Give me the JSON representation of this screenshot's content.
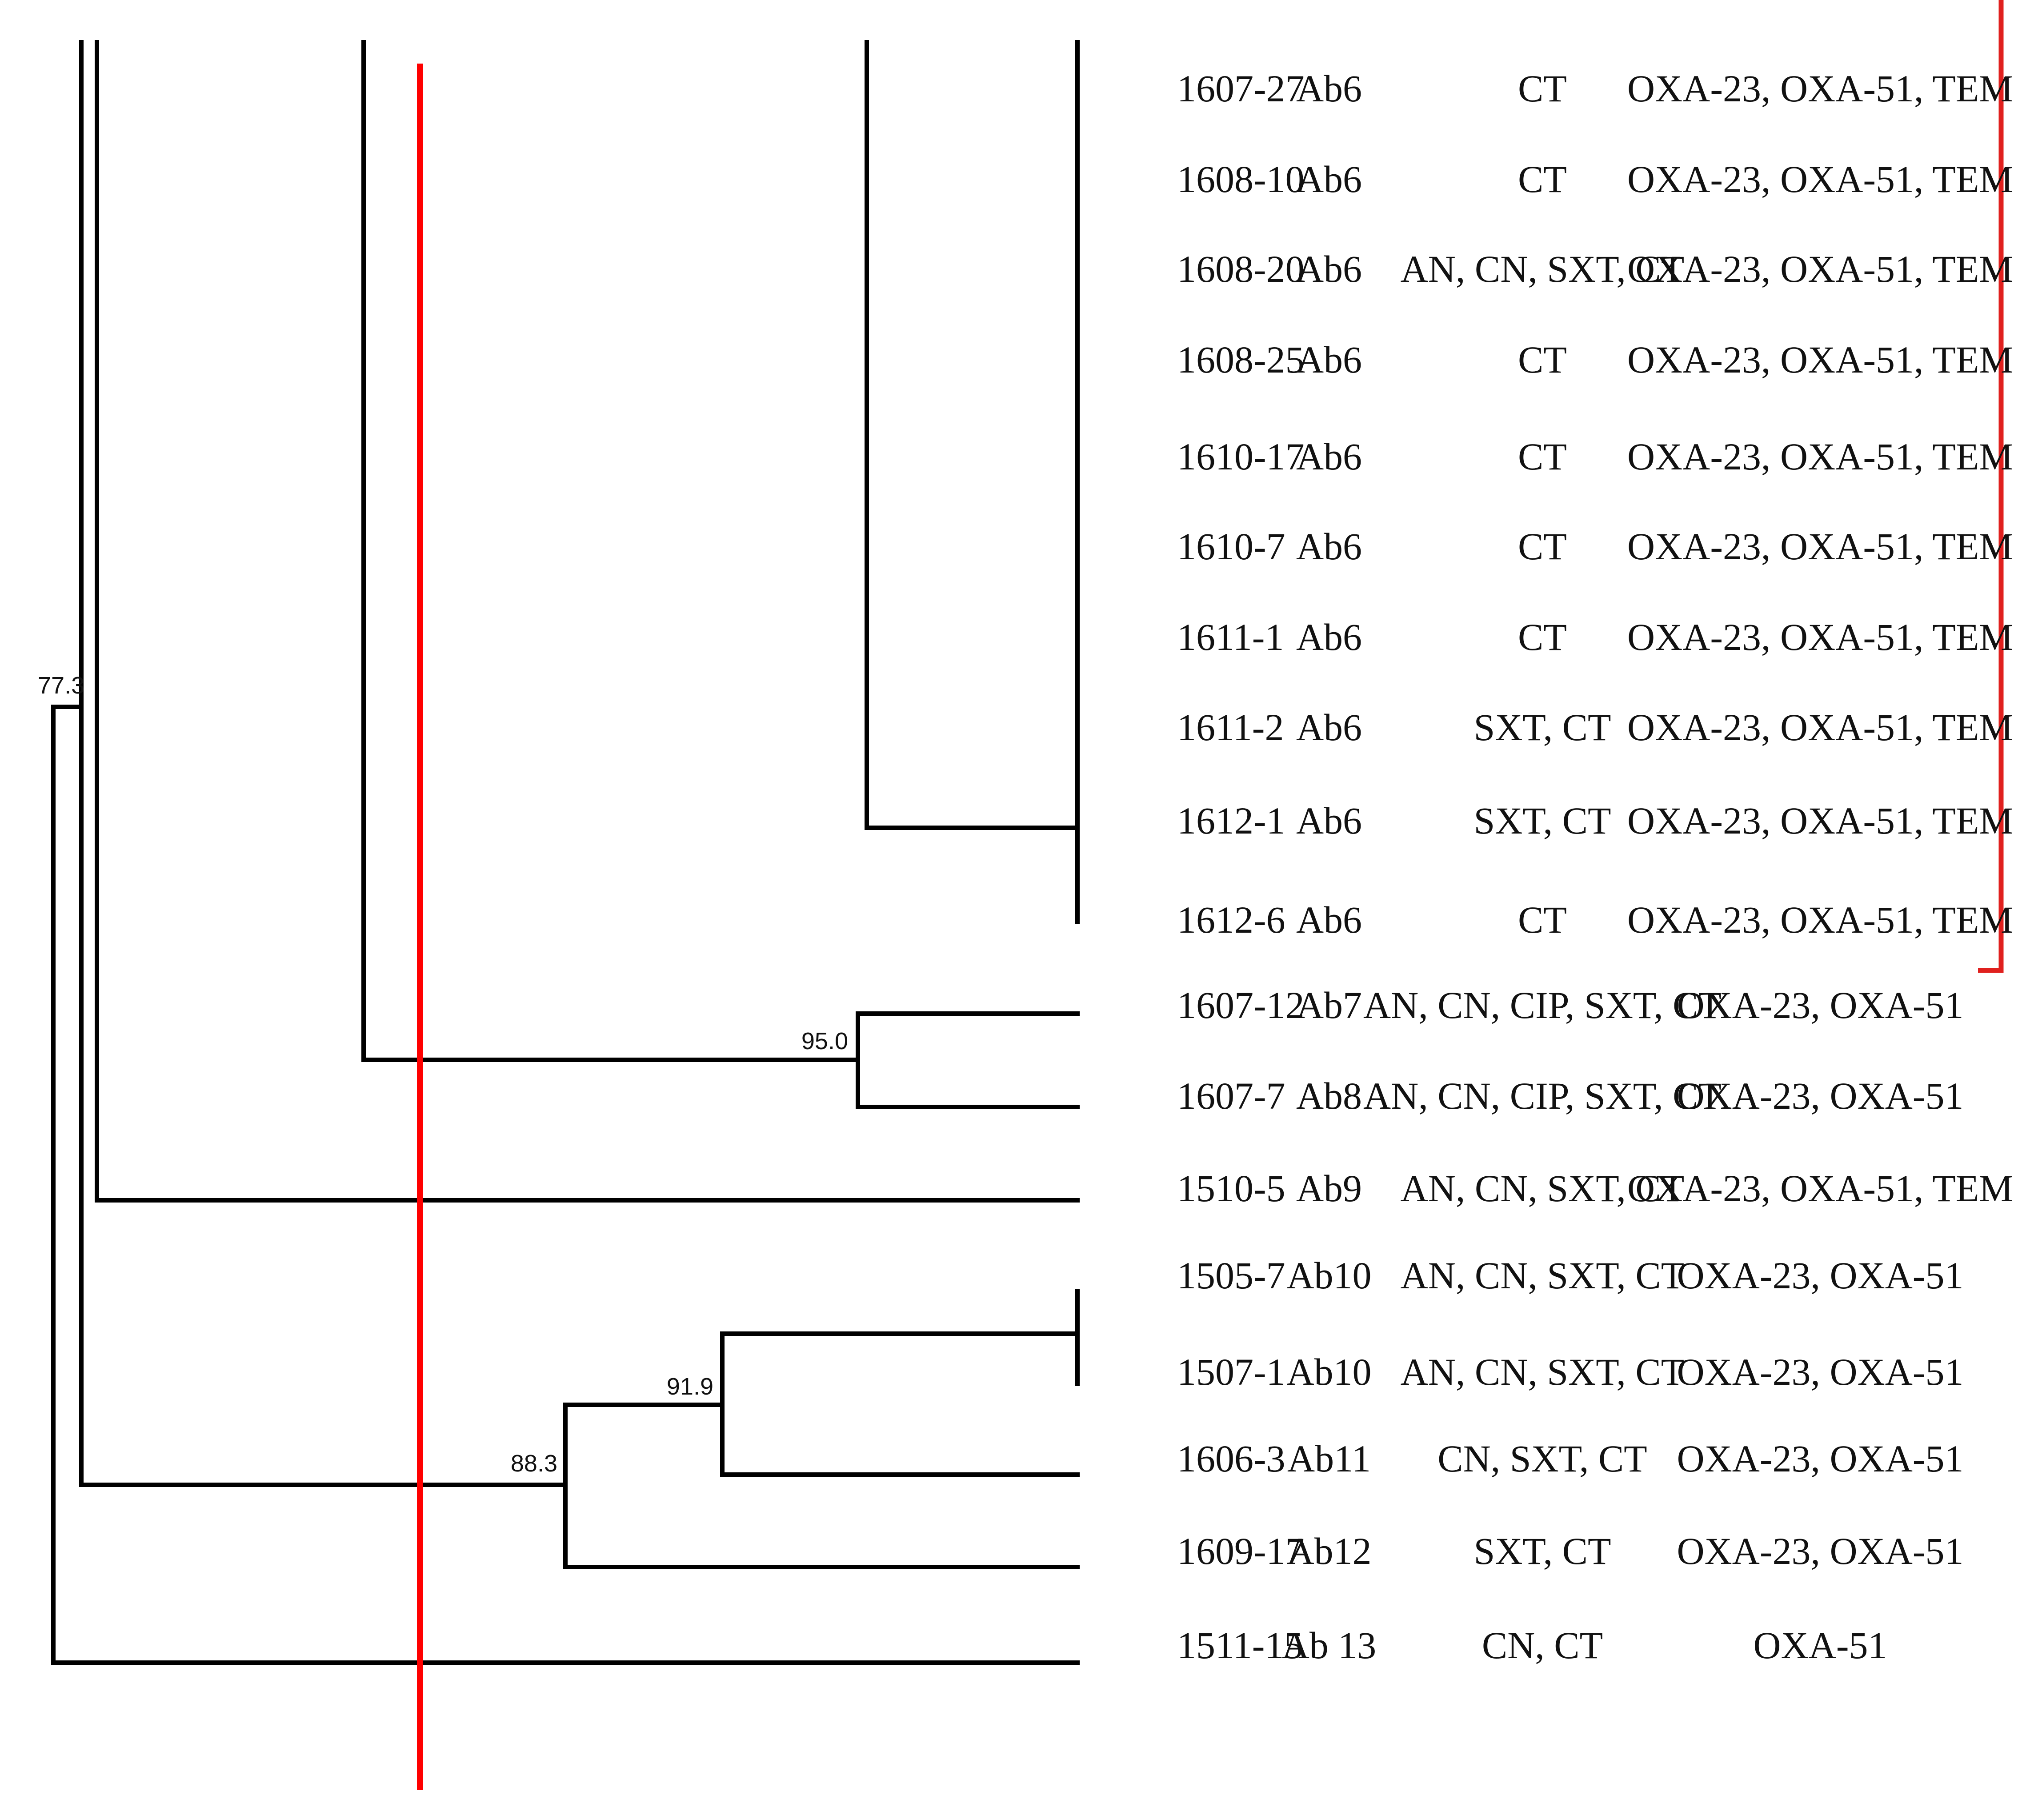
{
  "diagram": {
    "type": "dendrogram",
    "node_labels": [
      {
        "id": "n773",
        "value": "77.3"
      },
      {
        "id": "n950",
        "value": "95.0"
      },
      {
        "id": "n919",
        "value": "91.9"
      },
      {
        "id": "n883",
        "value": "88.3"
      }
    ],
    "rows": [
      {
        "id": "1607-27",
        "pattern": "Ab6",
        "resistance": "CT",
        "genes": "OXA-23, OXA-51, TEM"
      },
      {
        "id": "1608-10",
        "pattern": "Ab6",
        "resistance": "CT",
        "genes": "OXA-23, OXA-51, TEM"
      },
      {
        "id": "1608-20",
        "pattern": "Ab6",
        "resistance": "AN, CN, SXT, CT",
        "genes": "OXA-23, OXA-51, TEM"
      },
      {
        "id": "1608-25",
        "pattern": "Ab6",
        "resistance": "CT",
        "genes": "OXA-23, OXA-51, TEM"
      },
      {
        "id": "1610-17",
        "pattern": "Ab6",
        "resistance": "CT",
        "genes": "OXA-23, OXA-51, TEM"
      },
      {
        "id": "1610-7",
        "pattern": "Ab6",
        "resistance": "CT",
        "genes": "OXA-23, OXA-51, TEM"
      },
      {
        "id": "1611-1",
        "pattern": "Ab6",
        "resistance": "CT",
        "genes": "OXA-23, OXA-51, TEM"
      },
      {
        "id": "1611-2",
        "pattern": "Ab6",
        "resistance": "SXT, CT",
        "genes": "OXA-23, OXA-51, TEM"
      },
      {
        "id": "1612-1",
        "pattern": "Ab6",
        "resistance": "SXT, CT",
        "genes": "OXA-23, OXA-51, TEM"
      },
      {
        "id": "1612-6",
        "pattern": "Ab6",
        "resistance": "CT",
        "genes": "OXA-23, OXA-51, TEM"
      },
      {
        "id": "1607-12",
        "pattern": "Ab7",
        "resistance": "AN, CN, CIP, SXT, CT",
        "genes": "OXA-23, OXA-51"
      },
      {
        "id": "1607-7",
        "pattern": "Ab8",
        "resistance": "AN, CN, CIP, SXT, CT",
        "genes": "OXA-23, OXA-51"
      },
      {
        "id": "1510-5",
        "pattern": "Ab9",
        "resistance": "AN, CN, SXT, CT",
        "genes": "OXA-23, OXA-51, TEM"
      },
      {
        "id": "1505-7",
        "pattern": "Ab10",
        "resistance": "AN, CN, SXT, CT",
        "genes": "OXA-23, OXA-51"
      },
      {
        "id": "1507-1",
        "pattern": "Ab10",
        "resistance": "AN, CN, SXT, CT",
        "genes": "OXA-23, OXA-51"
      },
      {
        "id": "1606-3",
        "pattern": "Ab11",
        "resistance": "CN, SXT, CT",
        "genes": "OXA-23, OXA-51"
      },
      {
        "id": "1609-17",
        "pattern": "Ab12",
        "resistance": "SXT, CT",
        "genes": "OXA-23, OXA-51"
      },
      {
        "id": "1511-15",
        "pattern": "Ab 13",
        "resistance": "CN, CT",
        "genes": "OXA-51"
      }
    ],
    "colors": {
      "branch": "#000000",
      "cutoff_line": "#ff0000",
      "bracket": "#e0201e",
      "text": "#111111"
    }
  }
}
